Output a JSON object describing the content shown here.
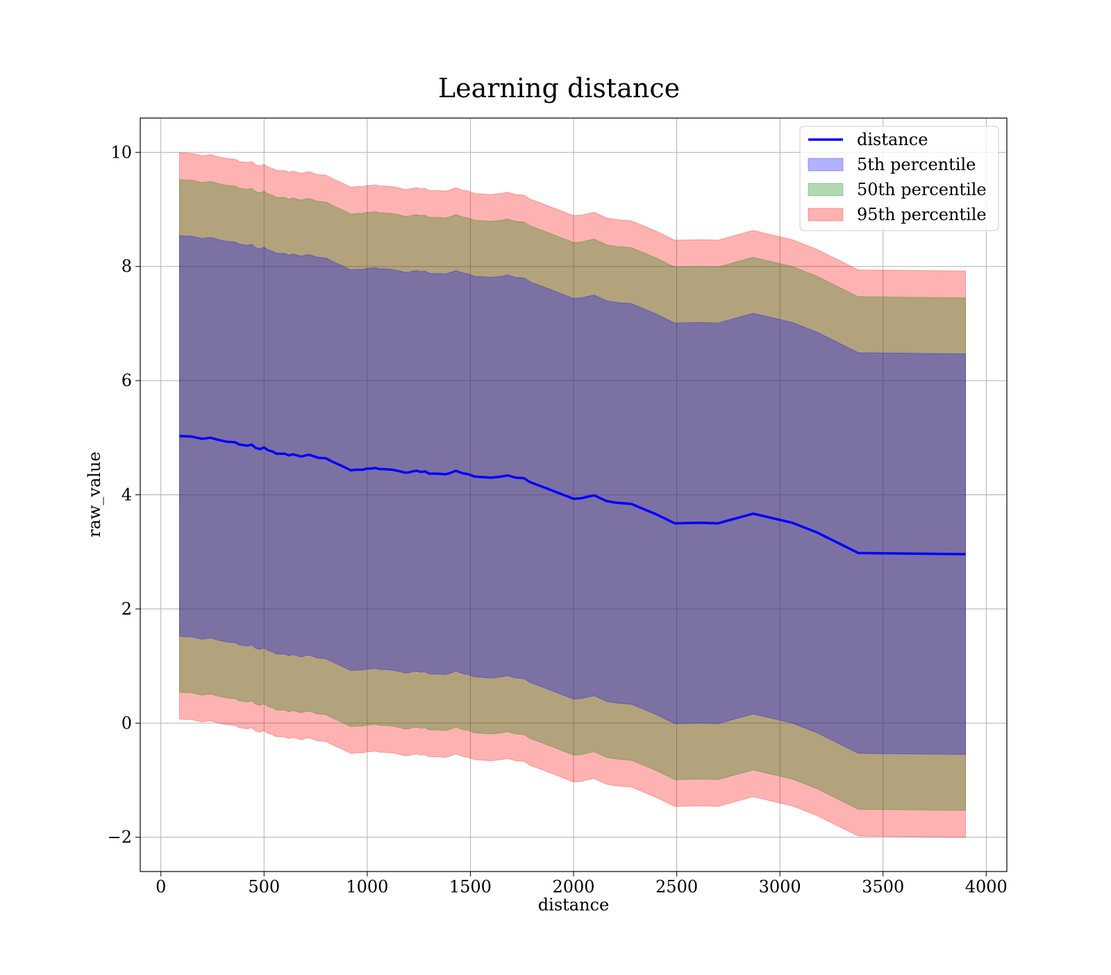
{
  "chart_data": {
    "type": "line",
    "title": "Learning distance",
    "xlabel": "distance",
    "ylabel": "raw_value",
    "xlim": [
      -100,
      4100
    ],
    "ylim": [
      -2.6,
      10.6
    ],
    "xticks": [
      0,
      500,
      1000,
      1500,
      2000,
      2500,
      3000,
      3500,
      4000
    ],
    "xtick_labels": [
      "0",
      "500",
      "1000",
      "1500",
      "2000",
      "2500",
      "3000",
      "3500",
      "4000"
    ],
    "yticks": [
      -2,
      0,
      2,
      4,
      6,
      8,
      10
    ],
    "ytick_labels": [
      "−2",
      "0",
      "2",
      "4",
      "6",
      "8",
      "10"
    ],
    "grid": true,
    "legend_position": "upper right",
    "series": [
      {
        "name": "distance",
        "kind": "line",
        "color": "#0000ff",
        "x": [
          90,
          150,
          200,
          240,
          280,
          320,
          360,
          380,
          420,
          440,
          460,
          480,
          500,
          520,
          540,
          560,
          600,
          620,
          640,
          680,
          700,
          720,
          760,
          800,
          820,
          850,
          880,
          920,
          950,
          980,
          1000,
          1020,
          1040,
          1060,
          1080,
          1120,
          1160,
          1180,
          1200,
          1220,
          1240,
          1260,
          1280,
          1300,
          1340,
          1380,
          1400,
          1430,
          1460,
          1490,
          1520,
          1560,
          1600,
          1650,
          1680,
          1720,
          1760,
          1790,
          1850,
          1900,
          1950,
          2000,
          2040,
          2060,
          2100,
          2160,
          2210,
          2280,
          2400,
          2490,
          2620,
          2700,
          2870,
          3060,
          3180,
          3380,
          3900
        ],
        "y": [
          5.03,
          5.02,
          4.98,
          5.0,
          4.96,
          4.93,
          4.92,
          4.88,
          4.86,
          4.88,
          4.82,
          4.8,
          4.83,
          4.78,
          4.76,
          4.72,
          4.72,
          4.69,
          4.71,
          4.67,
          4.69,
          4.7,
          4.65,
          4.64,
          4.6,
          4.55,
          4.5,
          4.43,
          4.44,
          4.44,
          4.46,
          4.46,
          4.47,
          4.45,
          4.45,
          4.44,
          4.41,
          4.39,
          4.39,
          4.41,
          4.42,
          4.4,
          4.41,
          4.37,
          4.37,
          4.36,
          4.38,
          4.42,
          4.38,
          4.36,
          4.32,
          4.31,
          4.3,
          4.32,
          4.34,
          4.3,
          4.29,
          4.22,
          4.14,
          4.07,
          4.0,
          3.93,
          3.94,
          3.96,
          3.99,
          3.89,
          3.86,
          3.84,
          3.66,
          3.5,
          3.51,
          3.5,
          3.67,
          3.51,
          3.34,
          2.98,
          2.96
        ]
      },
      {
        "name": "5th percentile",
        "kind": "band",
        "color": "#0000ff",
        "offset": 3.51
      },
      {
        "name": "50th percentile",
        "kind": "band",
        "color": "#008000",
        "offset": 4.49
      },
      {
        "name": "95th percentile",
        "kind": "band",
        "color": "#ff0000",
        "offset": 4.96
      }
    ]
  }
}
